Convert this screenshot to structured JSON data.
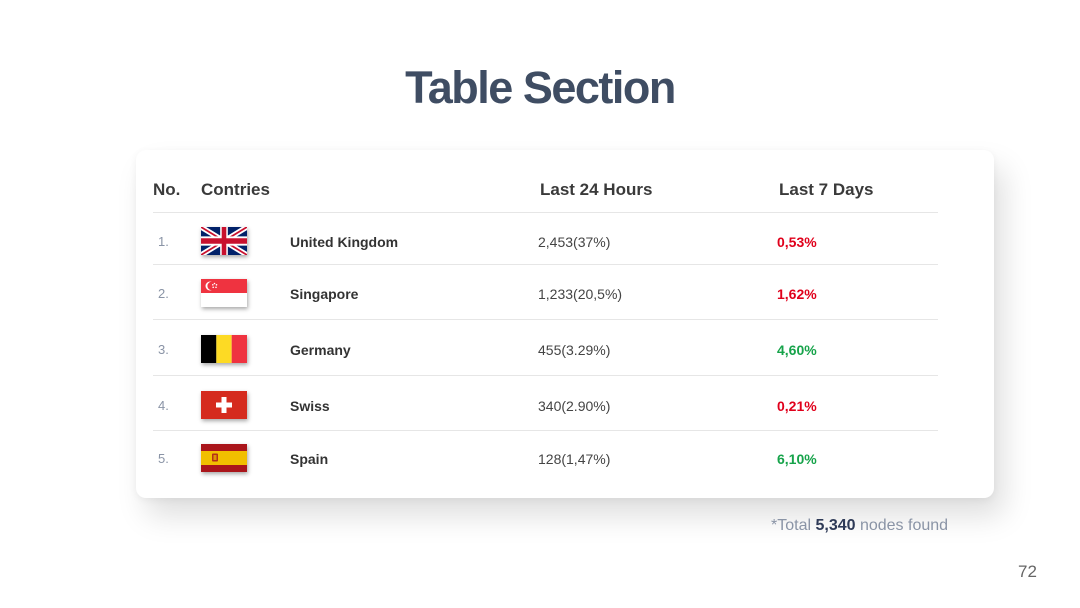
{
  "title": "Table Section",
  "table": {
    "headers": {
      "no": "No.",
      "country": "Contries",
      "h24": "Last 24 Hours",
      "d7": "Last 7 Days"
    },
    "rows": [
      {
        "num": "1.",
        "flag": "uk-flag",
        "country": "United Kingdom",
        "h24": "2,453(37%)",
        "d7": "0,53%",
        "d7_color": "#e0001b"
      },
      {
        "num": "2.",
        "flag": "singapore-flag",
        "country": "Singapore",
        "h24": "1,233(20,5%)",
        "d7": "1,62%",
        "d7_color": "#e0001b"
      },
      {
        "num": "3.",
        "flag": "belgium-flag",
        "country": "Germany",
        "h24": "455(3.29%)",
        "d7": "4,60%",
        "d7_color": "#16a34a"
      },
      {
        "num": "4.",
        "flag": "swiss-flag",
        "country": "Swiss",
        "h24": "340(2.90%)",
        "d7": "0,21%",
        "d7_color": "#e0001b"
      },
      {
        "num": "5.",
        "flag": "spain-flag",
        "country": "Spain",
        "h24": "128(1,47%)",
        "d7": "6,10%",
        "d7_color": "#16a34a"
      }
    ]
  },
  "footnote": {
    "prefix": "*Total ",
    "value": "5,340",
    "suffix": " nodes found"
  },
  "page_number": "72"
}
